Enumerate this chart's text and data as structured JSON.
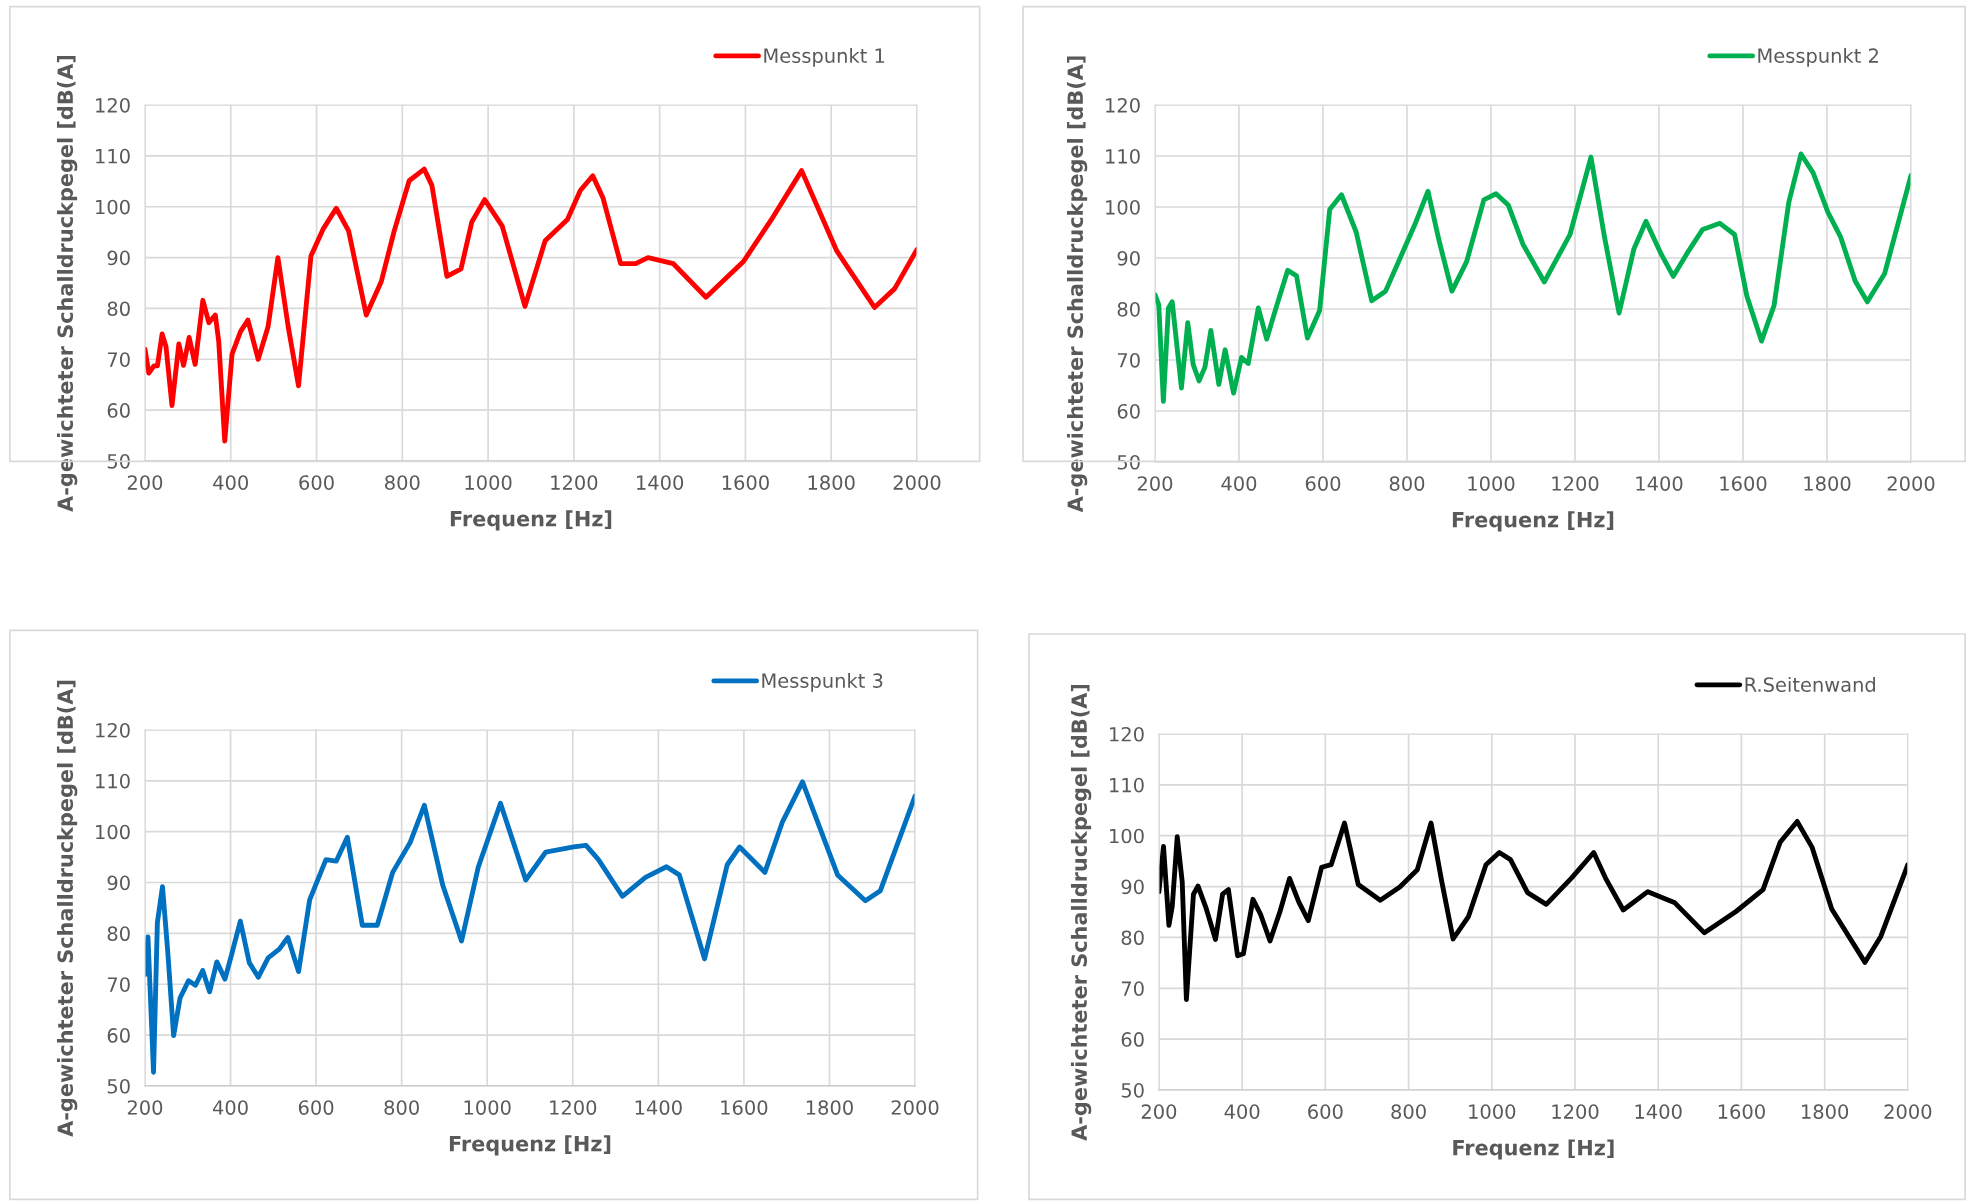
{
  "chart_data": [
    {
      "type": "line",
      "xlabel": "Frequenz [Hz]",
      "ylabel": "A-gewichteter Schalldruckpegel [dB(A]",
      "xlim": [
        200,
        2000
      ],
      "ylim": [
        50,
        120
      ],
      "xticks": [
        200,
        400,
        600,
        800,
        1000,
        1200,
        1400,
        1600,
        1800,
        2000
      ],
      "yticks": [
        50,
        60,
        70,
        80,
        90,
        100,
        110,
        120
      ],
      "grid": true,
      "legend": "top right",
      "series": [
        {
          "name": "Messpunkt 1",
          "color": "#ff0000",
          "x": [
            200,
            209,
            221,
            229,
            240,
            249,
            263,
            279,
            290,
            303,
            317,
            335,
            349,
            364,
            372,
            386,
            403,
            423,
            440,
            464,
            487,
            510,
            534,
            558,
            587,
            616,
            646,
            675,
            716,
            751,
            781,
            816,
            851,
            869,
            904,
            937,
            962,
            992,
            1033,
            1086,
            1133,
            1185,
            1215,
            1244,
            1268,
            1309,
            1344,
            1373,
            1432,
            1508,
            1596,
            1660,
            1731,
            1813,
            1901,
            1948,
            2000
          ],
          "values": [
            72.0,
            67.3,
            68.7,
            68.7,
            75.0,
            72.5,
            60.9,
            73.0,
            68.8,
            74.3,
            69.0,
            81.6,
            77.2,
            78.7,
            73.5,
            53.9,
            71.0,
            75.5,
            77.7,
            70.0,
            76.4,
            90.0,
            76.4,
            64.8,
            90.3,
            95.7,
            99.7,
            95.2,
            78.7,
            85.3,
            95.2,
            105.1,
            107.4,
            104.2,
            86.3,
            87.8,
            97.0,
            101.4,
            96.2,
            80.4,
            93.3,
            97.5,
            103.2,
            106.1,
            101.7,
            88.8,
            88.8,
            90.0,
            88.8,
            82.2,
            89.3,
            97.4,
            107.1,
            91.3,
            80.2,
            83.9,
            91.6
          ]
        }
      ]
    },
    {
      "type": "line",
      "xlabel": "Frequenz [Hz]",
      "ylabel": "A-gewichteter Schalldruckpegel [dB(A]",
      "xlim": [
        200,
        2000
      ],
      "ylim": [
        50,
        120
      ],
      "xticks": [
        200,
        400,
        600,
        800,
        1000,
        1200,
        1400,
        1600,
        1800,
        2000
      ],
      "yticks": [
        50,
        60,
        70,
        80,
        90,
        100,
        110,
        120
      ],
      "grid": true,
      "legend": "top right",
      "series": [
        {
          "name": "Messpunkt 2",
          "color": "#00b050",
          "x": [
            200,
            209,
            220,
            232,
            241,
            263,
            278,
            291,
            305,
            319,
            333,
            352,
            367,
            387,
            406,
            422,
            446,
            466,
            490,
            516,
            537,
            563,
            592,
            616,
            644,
            679,
            716,
            749,
            819,
            850,
            877,
            907,
            942,
            983,
            1012,
            1041,
            1076,
            1127,
            1188,
            1238,
            1270,
            1305,
            1340,
            1369,
            1405,
            1434,
            1469,
            1504,
            1545,
            1580,
            1609,
            1644,
            1674,
            1709,
            1738,
            1767,
            1802,
            1832,
            1867,
            1896,
            1937,
            2000
          ],
          "values": [
            82.8,
            80.8,
            61.9,
            80.2,
            81.4,
            64.5,
            77.3,
            69.1,
            65.9,
            68.6,
            75.8,
            65.2,
            72.0,
            63.5,
            70.5,
            69.3,
            80.2,
            74.1,
            80.7,
            87.6,
            86.5,
            74.3,
            79.7,
            99.5,
            102.4,
            95.1,
            81.6,
            83.5,
            96.6,
            103.1,
            93.2,
            83.5,
            89.3,
            101.4,
            102.6,
            100.4,
            92.7,
            85.3,
            94.6,
            109.8,
            94.2,
            79.2,
            91.7,
            97.2,
            90.8,
            86.4,
            91.2,
            95.6,
            96.8,
            94.6,
            82.6,
            73.7,
            80.7,
            100.9,
            110.4,
            106.7,
            99.0,
            94.2,
            85.5,
            81.4,
            86.9,
            106.2
          ]
        }
      ]
    },
    {
      "type": "line",
      "xlabel": "Frequenz [Hz]",
      "ylabel": "A-gewichteter Schalldruckpegel [dB(A]",
      "xlim": [
        200,
        2000
      ],
      "ylim": [
        50,
        120
      ],
      "xticks": [
        200,
        400,
        600,
        800,
        1000,
        1200,
        1400,
        1600,
        1800,
        2000
      ],
      "yticks": [
        50,
        60,
        70,
        80,
        90,
        100,
        110,
        120
      ],
      "grid": true,
      "legend": "top right",
      "series": [
        {
          "name": "Messpunkt 3",
          "color": "#0070c0",
          "x": [
            200,
            207,
            220,
            229,
            241,
            253,
            267,
            282,
            302,
            318,
            335,
            351,
            368,
            387,
            402,
            423,
            444,
            465,
            488,
            514,
            534,
            559,
            585,
            623,
            647,
            673,
            708,
            743,
            779,
            820,
            853,
            896,
            940,
            979,
            1031,
            1090,
            1137,
            1202,
            1231,
            1260,
            1316,
            1370,
            1419,
            1449,
            1508,
            1561,
            1590,
            1649,
            1690,
            1737,
            1819,
            1884,
            1919,
            2000
          ],
          "values": [
            71.9,
            79.3,
            52.7,
            82.1,
            89.2,
            76.7,
            59.9,
            67.3,
            70.7,
            69.8,
            72.7,
            68.5,
            74.4,
            71.0,
            75.7,
            82.4,
            74.2,
            71.4,
            75.2,
            76.9,
            79.2,
            72.5,
            86.6,
            94.5,
            94.2,
            98.9,
            81.6,
            81.6,
            92.0,
            97.9,
            105.2,
            89.5,
            78.5,
            93.0,
            105.6,
            90.5,
            96.0,
            97.0,
            97.3,
            94.5,
            87.3,
            91.0,
            93.1,
            91.5,
            75.0,
            93.5,
            97.0,
            92.0,
            101.9,
            109.8,
            91.5,
            86.4,
            88.4,
            107.0
          ]
        }
      ]
    },
    {
      "type": "line",
      "xlabel": "Frequenz [Hz]",
      "ylabel": "A-gewichteter Schalldruckpegel [dB(A]",
      "xlim": [
        200,
        2000
      ],
      "ylim": [
        50,
        120
      ],
      "xticks": [
        200,
        400,
        600,
        800,
        1000,
        1200,
        1400,
        1600,
        1800,
        2000
      ],
      "yticks": [
        50,
        60,
        70,
        80,
        90,
        100,
        110,
        120
      ],
      "grid": true,
      "legend": "top right",
      "series": [
        {
          "name": "R.Seitenwand",
          "color": "#000000",
          "x": [
            200,
            211,
            224,
            232,
            244,
            256,
            266,
            283,
            294,
            314,
            336,
            353,
            367,
            389,
            403,
            426,
            444,
            467,
            491,
            514,
            536,
            559,
            591,
            614,
            646,
            679,
            732,
            779,
            821,
            854,
            880,
            907,
            944,
            986,
            1018,
            1045,
            1086,
            1131,
            1192,
            1245,
            1275,
            1316,
            1375,
            1440,
            1511,
            1587,
            1652,
            1693,
            1734,
            1770,
            1817,
            1897,
            1935,
            2000
          ],
          "values": [
            89.0,
            97.9,
            82.4,
            86.1,
            99.8,
            90.9,
            67.8,
            88.5,
            90.1,
            85.6,
            79.6,
            88.5,
            89.4,
            76.4,
            76.8,
            87.5,
            84.6,
            79.3,
            85.1,
            91.6,
            87.0,
            83.3,
            93.8,
            94.3,
            102.5,
            90.4,
            87.3,
            89.9,
            93.3,
            102.5,
            90.9,
            79.7,
            84.1,
            94.3,
            96.7,
            95.3,
            88.8,
            86.5,
            91.7,
            96.7,
            91.4,
            85.4,
            89.0,
            86.8,
            80.9,
            85.1,
            89.4,
            98.7,
            102.8,
            97.7,
            85.6,
            75.1,
            80.2,
            94.3
          ]
        }
      ]
    }
  ]
}
